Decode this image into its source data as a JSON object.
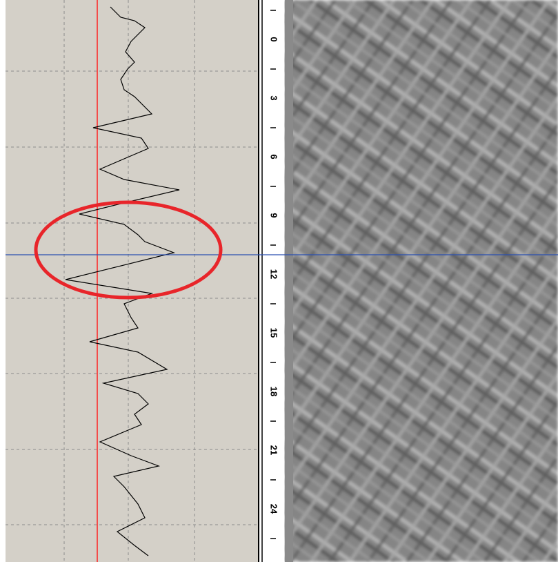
{
  "depth_scale": {
    "labels": [
      "0",
      "3",
      "6",
      "9",
      "12",
      "15",
      "18",
      "21",
      "24"
    ]
  }
}
